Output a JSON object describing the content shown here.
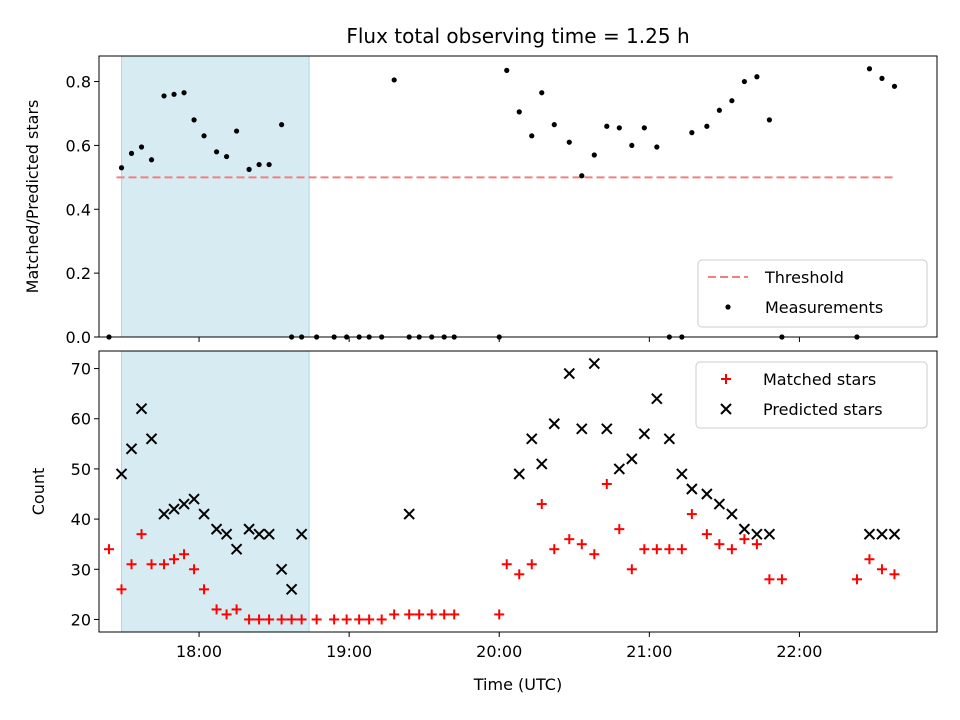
{
  "chart_data": [
    {
      "type": "scatter",
      "title": "Flux total observing time = 1.25 h",
      "xlabel": "",
      "ylabel": "Matched/Predicted stars",
      "xlim": [
        "17:20",
        "22:55"
      ],
      "ylim": [
        0,
        0.88
      ],
      "y_ticks": [
        "0.0",
        "0.2",
        "0.4",
        "0.6",
        "0.8"
      ],
      "shaded_interval": [
        "17:29",
        "18:44"
      ],
      "threshold": {
        "name": "Threshold",
        "value": 0.5,
        "x_range": [
          "17:27",
          "22:38"
        ],
        "color": "#f08080"
      },
      "legend": {
        "position": "lower-right",
        "entries": [
          "Threshold",
          "Measurements"
        ]
      },
      "series": [
        {
          "name": "Measurements",
          "color": "#000000",
          "x": [
            "17:24",
            "17:29",
            "17:33",
            "17:37",
            "17:41",
            "17:46",
            "17:50",
            "17:54",
            "17:58",
            "18:02",
            "18:07",
            "18:11",
            "18:15",
            "18:20",
            "18:24",
            "18:28",
            "18:33",
            "18:37",
            "18:41",
            "18:47",
            "18:54",
            "18:59",
            "19:04",
            "19:08",
            "19:13",
            "19:18",
            "19:24",
            "19:28",
            "19:33",
            "19:38",
            "19:42",
            "20:00",
            "20:03",
            "20:08",
            "20:13",
            "20:17",
            "20:22",
            "20:28",
            "20:33",
            "20:38",
            "20:43",
            "20:48",
            "20:53",
            "20:58",
            "21:03",
            "21:08",
            "21:13",
            "21:17",
            "21:23",
            "21:28",
            "21:33",
            "21:38",
            "21:43",
            "21:48",
            "21:53",
            "22:23",
            "22:28",
            "22:33",
            "22:38"
          ],
          "y": [
            0,
            0.53,
            0.575,
            0.595,
            0.555,
            0.755,
            0.76,
            0.765,
            0.68,
            0.63,
            0.58,
            0.565,
            0.645,
            0.525,
            0.54,
            0.54,
            0.665,
            0,
            0,
            0,
            0,
            0,
            0,
            0,
            0,
            0.805,
            0,
            0,
            0,
            0,
            0,
            0,
            0.835,
            0.705,
            0.63,
            0.765,
            0.665,
            0.61,
            0.505,
            0.57,
            0.66,
            0.655,
            0.6,
            0.655,
            0.595,
            0,
            0,
            0.64,
            0.66,
            0.71,
            0.74,
            0.8,
            0.815,
            0.68,
            0,
            0,
            0.84,
            0.81,
            0.785
          ]
        }
      ]
    },
    {
      "type": "scatter",
      "title": "",
      "xlabel": "Time (UTC)",
      "ylabel": "Count",
      "xlim": [
        "17:20",
        "22:55"
      ],
      "ylim": [
        17.5,
        73.5
      ],
      "y_ticks": [
        "20",
        "30",
        "40",
        "50",
        "60",
        "70"
      ],
      "x_ticks": [
        "18:00",
        "19:00",
        "20:00",
        "21:00",
        "22:00"
      ],
      "shaded_interval": [
        "17:29",
        "18:44"
      ],
      "legend": {
        "position": "upper-right",
        "entries": [
          "Matched stars",
          "Predicted stars"
        ]
      },
      "series": [
        {
          "name": "Matched stars",
          "marker": "plus",
          "color": "#ff0000",
          "x": [
            "17:24",
            "17:29",
            "17:33",
            "17:37",
            "17:41",
            "17:46",
            "17:50",
            "17:54",
            "17:58",
            "18:02",
            "18:07",
            "18:11",
            "18:15",
            "18:20",
            "18:24",
            "18:28",
            "18:33",
            "18:37",
            "18:41",
            "18:47",
            "18:54",
            "18:59",
            "19:04",
            "19:08",
            "19:13",
            "19:18",
            "19:24",
            "19:28",
            "19:33",
            "19:38",
            "19:42",
            "20:00",
            "20:03",
            "20:08",
            "20:13",
            "20:17",
            "20:22",
            "20:28",
            "20:33",
            "20:38",
            "20:43",
            "20:48",
            "20:53",
            "20:58",
            "21:03",
            "21:08",
            "21:13",
            "21:17",
            "21:23",
            "21:28",
            "21:33",
            "21:38",
            "21:43",
            "21:48",
            "21:53",
            "22:23",
            "22:28",
            "22:33",
            "22:38"
          ],
          "y": [
            34,
            26,
            31,
            37,
            31,
            31,
            32,
            33,
            30,
            26,
            22,
            21,
            22,
            20,
            20,
            20,
            20,
            20,
            20,
            20,
            20,
            20,
            20,
            20,
            20,
            21,
            21,
            21,
            21,
            21,
            21,
            21,
            31,
            29,
            31,
            43,
            34,
            36,
            35,
            33,
            47,
            38,
            30,
            34,
            34,
            34,
            34,
            41,
            37,
            35,
            34,
            36,
            35,
            28,
            28,
            28,
            32,
            30,
            29
          ]
        },
        {
          "name": "Predicted stars",
          "marker": "x",
          "color": "#000000",
          "x": [
            "17:29",
            "17:33",
            "17:37",
            "17:41",
            "17:46",
            "17:50",
            "17:54",
            "17:58",
            "18:02",
            "18:07",
            "18:11",
            "18:15",
            "18:20",
            "18:24",
            "18:28",
            "18:33",
            "18:37",
            "18:41",
            "19:24",
            "20:08",
            "20:13",
            "20:17",
            "20:22",
            "20:28",
            "20:33",
            "20:38",
            "20:43",
            "20:48",
            "20:53",
            "20:58",
            "21:03",
            "21:08",
            "21:13",
            "21:17",
            "21:23",
            "21:28",
            "21:33",
            "21:38",
            "21:43",
            "21:48",
            "22:28",
            "22:33",
            "22:38"
          ],
          "y": [
            49,
            54,
            62,
            56,
            41,
            42,
            43,
            44,
            41,
            38,
            37,
            34,
            38,
            37,
            37,
            30,
            26,
            37,
            41,
            49,
            56,
            51,
            59,
            69,
            58,
            71,
            58,
            50,
            52,
            57,
            64,
            56,
            49,
            46,
            45,
            43,
            41,
            38,
            37,
            37,
            37,
            37,
            37
          ]
        }
      ]
    }
  ]
}
